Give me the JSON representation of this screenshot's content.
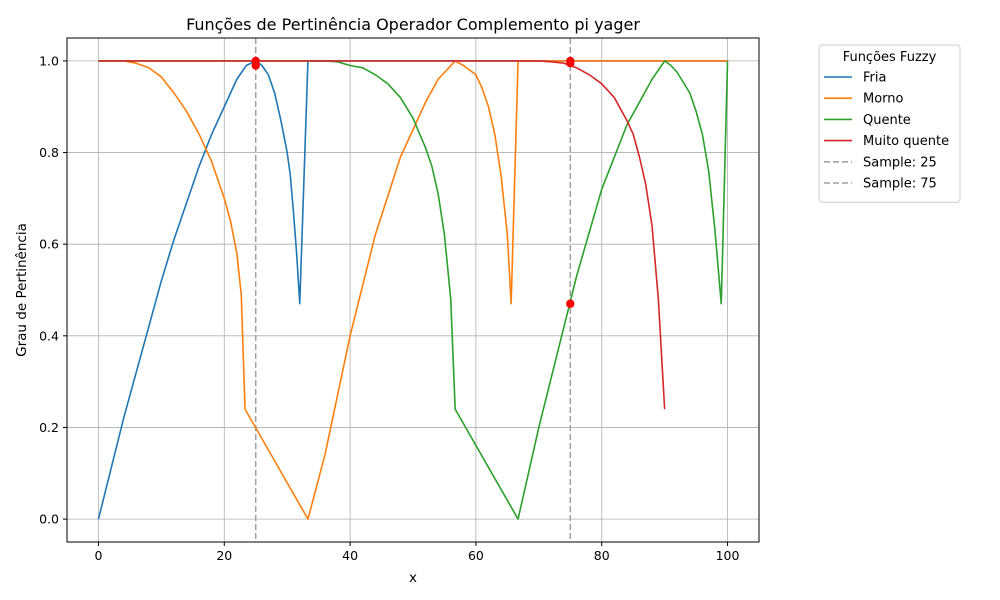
{
  "chart_data": {
    "type": "line",
    "title": "Funções de Pertinência Operador Complemento pi yager",
    "xlabel": "x",
    "ylabel": "Grau de Pertinência",
    "xlim": [
      -5,
      105
    ],
    "ylim": [
      -0.05,
      1.05
    ],
    "xticks": [
      0,
      20,
      40,
      60,
      80,
      100
    ],
    "xtick_labels": [
      "0",
      "20",
      "40",
      "60",
      "80",
      "100"
    ],
    "yticks": [
      0.0,
      0.2,
      0.4,
      0.6,
      0.8,
      1.0
    ],
    "ytick_labels": [
      "0.0",
      "0.2",
      "0.4",
      "0.6",
      "0.8",
      "1.0"
    ],
    "grid": true,
    "legend": {
      "title": "Funções Fuzzy",
      "placement": "outside-top-right"
    },
    "series": [
      {
        "name": "Fria",
        "color": "#1f77b4",
        "points": [
          [
            0,
            0.0
          ],
          [
            2,
            0.11
          ],
          [
            4,
            0.22
          ],
          [
            6,
            0.32
          ],
          [
            8,
            0.42
          ],
          [
            10,
            0.52
          ],
          [
            12,
            0.61
          ],
          [
            14,
            0.69
          ],
          [
            16,
            0.77
          ],
          [
            18,
            0.84
          ],
          [
            20,
            0.9
          ],
          [
            22,
            0.96
          ],
          [
            23.5,
            0.99
          ],
          [
            25,
            1.0
          ],
          [
            26,
            0.99
          ],
          [
            27,
            0.97
          ],
          [
            28,
            0.93
          ],
          [
            29,
            0.87
          ],
          [
            30,
            0.8
          ],
          [
            30.5,
            0.75
          ],
          [
            31,
            0.67
          ],
          [
            31.5,
            0.58
          ],
          [
            32,
            0.47
          ],
          [
            33.3,
            1.0
          ],
          [
            35,
            1.0
          ],
          [
            100,
            1.0
          ]
        ]
      },
      {
        "name": "Morno",
        "color": "#ff7f0e",
        "points": [
          [
            0,
            1.0
          ],
          [
            4,
            1.0
          ],
          [
            6,
            0.995
          ],
          [
            8,
            0.985
          ],
          [
            10,
            0.965
          ],
          [
            12,
            0.93
          ],
          [
            14,
            0.89
          ],
          [
            16,
            0.84
          ],
          [
            18,
            0.78
          ],
          [
            20,
            0.7
          ],
          [
            21,
            0.65
          ],
          [
            22,
            0.58
          ],
          [
            22.7,
            0.49
          ],
          [
            23.3,
            0.24
          ],
          [
            33.3,
            0.0
          ],
          [
            36,
            0.14
          ],
          [
            40,
            0.4
          ],
          [
            44,
            0.62
          ],
          [
            48,
            0.79
          ],
          [
            50,
            0.85
          ],
          [
            52,
            0.91
          ],
          [
            54,
            0.96
          ],
          [
            56.7,
            1.0
          ],
          [
            58,
            0.99
          ],
          [
            60,
            0.97
          ],
          [
            61,
            0.94
          ],
          [
            62,
            0.9
          ],
          [
            63,
            0.84
          ],
          [
            64,
            0.75
          ],
          [
            65,
            0.62
          ],
          [
            65.6,
            0.47
          ],
          [
            66.7,
            1.0
          ],
          [
            68,
            1.0
          ],
          [
            100,
            1.0
          ]
        ]
      },
      {
        "name": "Quente",
        "color": "#2ca02c",
        "points": [
          [
            0,
            1.0
          ],
          [
            36,
            1.0
          ],
          [
            38,
            0.998
          ],
          [
            40,
            0.99
          ],
          [
            42,
            0.985
          ],
          [
            44,
            0.97
          ],
          [
            46,
            0.95
          ],
          [
            48,
            0.92
          ],
          [
            50,
            0.875
          ],
          [
            52,
            0.81
          ],
          [
            53,
            0.77
          ],
          [
            54,
            0.71
          ],
          [
            55,
            0.62
          ],
          [
            56,
            0.48
          ],
          [
            56.7,
            0.24
          ],
          [
            66.7,
            0.0
          ],
          [
            70,
            0.2
          ],
          [
            74,
            0.42
          ],
          [
            76,
            0.53
          ],
          [
            80,
            0.72
          ],
          [
            84,
            0.86
          ],
          [
            88,
            0.96
          ],
          [
            90,
            1.0
          ],
          [
            91,
            0.99
          ],
          [
            92,
            0.975
          ],
          [
            94,
            0.93
          ],
          [
            95,
            0.89
          ],
          [
            96,
            0.84
          ],
          [
            97,
            0.76
          ],
          [
            98,
            0.63
          ],
          [
            99,
            0.47
          ],
          [
            100,
            1.0
          ]
        ]
      },
      {
        "name": "Muito quente",
        "color": "#d62728",
        "points": [
          [
            0,
            1.0
          ],
          [
            70,
            1.0
          ],
          [
            72,
            0.998
          ],
          [
            74,
            0.995
          ],
          [
            76,
            0.985
          ],
          [
            78,
            0.97
          ],
          [
            80,
            0.95
          ],
          [
            82,
            0.92
          ],
          [
            84,
            0.87
          ],
          [
            85,
            0.84
          ],
          [
            86,
            0.79
          ],
          [
            87,
            0.73
          ],
          [
            88,
            0.64
          ],
          [
            89,
            0.48
          ],
          [
            90,
            0.24
          ]
        ]
      }
    ],
    "reference_lines": [
      {
        "name": "Sample: 25",
        "x": 25,
        "color": "#a0a0a0"
      },
      {
        "name": "Sample: 75",
        "x": 75,
        "color": "#a0a0a0"
      }
    ],
    "markers": [
      {
        "x": 25,
        "y": 1.0
      },
      {
        "x": 25,
        "y": 0.99
      },
      {
        "x": 75,
        "y": 1.0
      },
      {
        "x": 75,
        "y": 0.995
      },
      {
        "x": 75,
        "y": 0.47
      }
    ],
    "marker_color": "#ff0000"
  }
}
